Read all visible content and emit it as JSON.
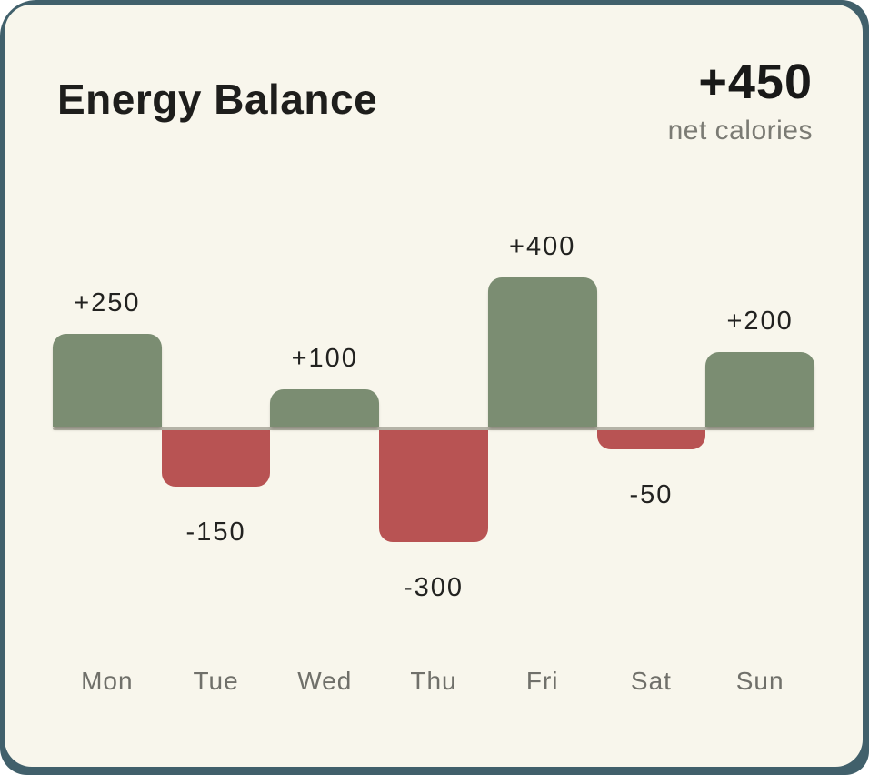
{
  "card": {
    "title": "Energy Balance",
    "summary": {
      "value": "+450",
      "label": "net calories"
    }
  },
  "chart_data": {
    "type": "bar",
    "title": "Energy Balance",
    "categories": [
      "Mon",
      "Tue",
      "Wed",
      "Thu",
      "Fri",
      "Sat",
      "Sun"
    ],
    "values": [
      250,
      -150,
      100,
      -300,
      400,
      -50,
      200
    ],
    "bar_labels": [
      "+250",
      "-150",
      "+100",
      "-300",
      "+400",
      "-50",
      "+200"
    ],
    "unit": "net calories",
    "baseline": 0,
    "ylim": [
      -320,
      420
    ],
    "grid": false,
    "legend": "none",
    "orientation": "vertical",
    "label_position": "outside-end",
    "summary_total": 450
  },
  "colors": {
    "frame_background": "#41606B",
    "card_background": "#F8F6EC",
    "positive_bar": "#7B8D72",
    "negative_bar": "#B85353",
    "baseline_line": "#B5B3A7",
    "title_text": "#1E1E1C",
    "value_text": "#222220",
    "muted_text": "#70706A"
  }
}
